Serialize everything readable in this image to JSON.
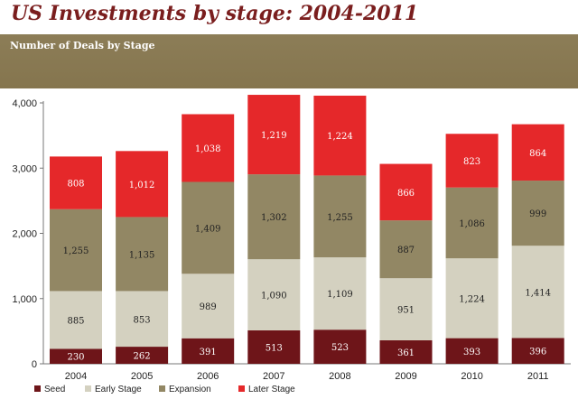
{
  "title": "US Investments by stage: 2004-2011",
  "subtitle": "Number of Deals by Stage",
  "colors": {
    "title": "#7a1e1e",
    "band": "#88794f",
    "seed": "#6e1519",
    "early": "#d4d1c0",
    "expansion": "#928764",
    "later": "#e5282a"
  },
  "chart_data": {
    "type": "bar",
    "stacked": true,
    "title": "Number of Deals by Stage",
    "categories": [
      "2004",
      "2005",
      "2006",
      "2007",
      "2008",
      "2009",
      "2010",
      "2011"
    ],
    "series": [
      {
        "name": "Seed",
        "color": "#6e1519",
        "values": [
          230,
          262,
          391,
          513,
          523,
          361,
          393,
          396
        ]
      },
      {
        "name": "Early Stage",
        "color": "#d4d1c0",
        "values": [
          885,
          853,
          989,
          1090,
          1109,
          951,
          1224,
          1414
        ]
      },
      {
        "name": "Expansion",
        "color": "#928764",
        "values": [
          1255,
          1135,
          1409,
          1302,
          1255,
          887,
          1086,
          999
        ]
      },
      {
        "name": "Later Stage",
        "color": "#e5282a",
        "values": [
          808,
          1012,
          1038,
          1219,
          1224,
          866,
          823,
          864
        ]
      }
    ],
    "ylim": [
      0,
      4000
    ],
    "yticks": [
      0,
      1000,
      2000,
      3000,
      4000
    ],
    "ytick_labels": [
      "0",
      "1,000",
      "2,000",
      "3,000",
      "4,000"
    ],
    "data_labels": [
      [
        "230",
        "262",
        "391",
        "513",
        "523",
        "361",
        "393",
        "396"
      ],
      [
        "885",
        "853",
        "989",
        "1,090",
        "1,109",
        "951",
        "1,224",
        "1,414"
      ],
      [
        "1,255",
        "1,135",
        "1,409",
        "1,302",
        "1,255",
        "887",
        "1,086",
        "999"
      ],
      [
        "808",
        "1,012",
        "1,038",
        "1,219",
        "1,224",
        "866",
        "823",
        "864"
      ]
    ],
    "grid": false,
    "legend": "bottom"
  }
}
